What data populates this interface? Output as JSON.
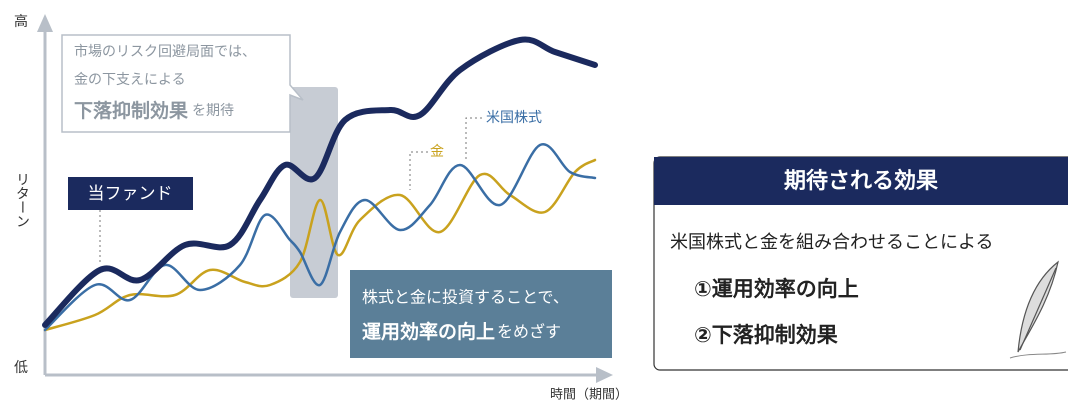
{
  "axes": {
    "y_high": "高",
    "y_label": "リターン",
    "y_low": "低",
    "x_label": "時間（期間）"
  },
  "callout": {
    "line1": "市場のリスク回避局面では、",
    "line2": "金の下支えによる",
    "line3_bold": "下落抑制効果",
    "line3_rest": "を期待"
  },
  "labels": {
    "stocks": "米国株式",
    "gold": "金",
    "fund": "当ファンド"
  },
  "message": {
    "line1": "株式と金に投資することで、",
    "line2_bold": "運用効率の向上",
    "line2_rest": "をめざす"
  },
  "panel": {
    "title": "期待される効果",
    "intro": "米国株式と金を組み合わせることによる",
    "item1": "①運用効率の向上",
    "item2": "②下落抑制効果"
  }
}
